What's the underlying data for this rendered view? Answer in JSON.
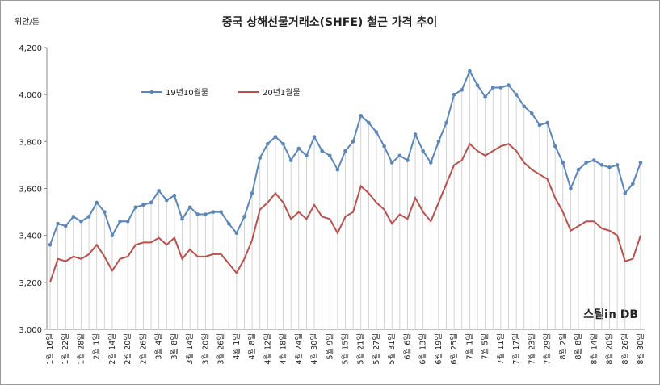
{
  "chart_data": {
    "type": "line",
    "title": "중국 상해선물거래소(SHFE)  철근 가격 추이",
    "y_unit": "위안/톤",
    "watermark": "스틸in DB",
    "categories": [
      "1월 16일",
      null,
      "1월 22일",
      null,
      "1월 28일",
      null,
      "2월 1일",
      null,
      "2월 14일",
      null,
      "2월 20일",
      null,
      "2월 26일",
      null,
      "3월 4일",
      null,
      "3월 8일",
      null,
      "3월 14일",
      null,
      "3월 20일",
      null,
      "3월 26일",
      null,
      "4월 1일",
      null,
      "4월 8일",
      null,
      "4월 12일",
      null,
      "4월 18일",
      null,
      "4월 24일",
      null,
      "4월 30일",
      null,
      "5월 9일",
      null,
      "5월 15일",
      null,
      "5월 21일",
      null,
      "5월 27일",
      null,
      "5월 31일",
      null,
      "6월 6일",
      null,
      "6월 13일",
      null,
      "6월 19일",
      null,
      "6월 25일",
      null,
      "7월 1일",
      null,
      "7월 5일",
      null,
      "7월 11일",
      null,
      "7월 17일",
      null,
      "7월 23일",
      null,
      "7월 29일",
      null,
      "8월 2일",
      null,
      "8월 8일",
      null,
      "8월 14일",
      null,
      "8월 20일",
      null,
      "8월 26일",
      null,
      "8월 30일"
    ],
    "series": [
      {
        "name": "19년10월물",
        "color": "#5a86ba",
        "values": [
          3360,
          3450,
          3440,
          3480,
          3460,
          3480,
          3540,
          3500,
          3400,
          3460,
          3460,
          3520,
          3530,
          3540,
          3590,
          3550,
          3570,
          3470,
          3520,
          3490,
          3490,
          3500,
          3500,
          3450,
          3410,
          3480,
          3580,
          3730,
          3790,
          3820,
          3790,
          3720,
          3770,
          3740,
          3820,
          3760,
          3740,
          3680,
          3760,
          3800,
          3910,
          3880,
          3840,
          3780,
          3710,
          3740,
          3720,
          3830,
          3760,
          3710,
          3800,
          3880,
          4000,
          4020,
          4100,
          4040,
          3990,
          4030,
          4030,
          4040,
          4000,
          3950,
          3920,
          3870,
          3880,
          3780,
          3710,
          3600,
          3680,
          3710,
          3720,
          3700,
          3690,
          3700,
          3580,
          3620,
          3710
        ]
      },
      {
        "name": "20년1월물",
        "color": "#b9504b",
        "values": [
          3200,
          3300,
          3290,
          3310,
          3300,
          3320,
          3360,
          3310,
          3250,
          3300,
          3310,
          3360,
          3370,
          3370,
          3390,
          3360,
          3390,
          3300,
          3340,
          3310,
          3310,
          3320,
          3320,
          3280,
          3240,
          3300,
          3380,
          3510,
          3540,
          3580,
          3540,
          3470,
          3500,
          3470,
          3530,
          3480,
          3470,
          3410,
          3480,
          3500,
          3610,
          3580,
          3540,
          3510,
          3450,
          3490,
          3470,
          3560,
          3500,
          3460,
          3540,
          3620,
          3700,
          3720,
          3790,
          3760,
          3740,
          3760,
          3780,
          3790,
          3760,
          3710,
          3680,
          3660,
          3640,
          3560,
          3500,
          3420,
          3440,
          3460,
          3460,
          3430,
          3420,
          3400,
          3290,
          3300,
          3400
        ]
      }
    ],
    "ylim": [
      3000,
      4200
    ],
    "yticks": [
      {
        "value": 3000,
        "label": "3,000"
      },
      {
        "value": 3200,
        "label": "3,200"
      },
      {
        "value": 3400,
        "label": "3,400"
      },
      {
        "value": 3600,
        "label": "3,600"
      },
      {
        "value": 3800,
        "label": "3,800"
      },
      {
        "value": 4000,
        "label": "4,000"
      },
      {
        "value": 4200,
        "label": "4,200"
      }
    ],
    "legend": "top-left",
    "drop_lines": true
  }
}
